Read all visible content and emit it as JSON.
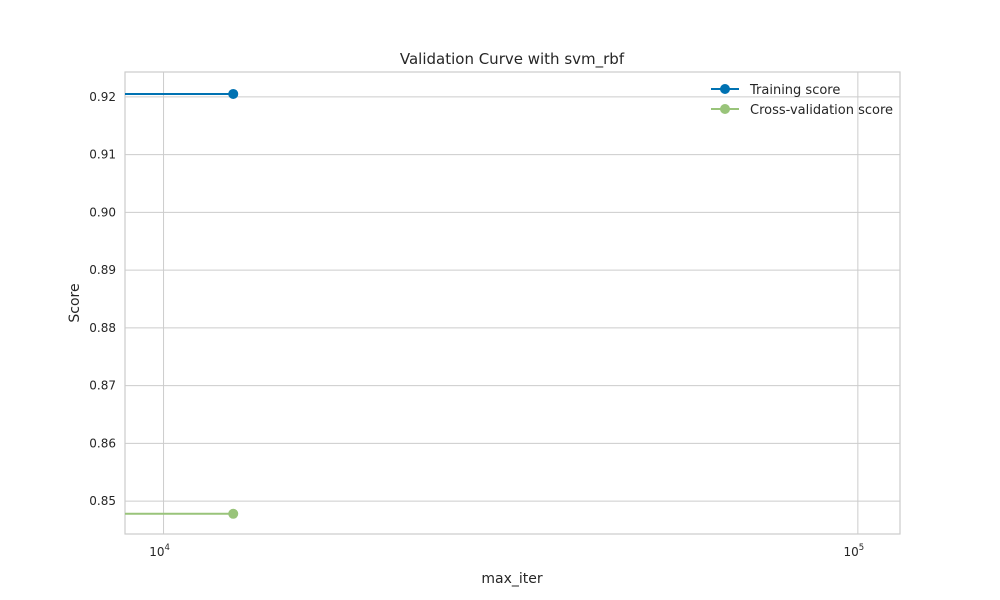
{
  "chart_data": {
    "type": "line",
    "title": "Validation Curve with svm_rbf",
    "xlabel": "max_iter",
    "ylabel": "Score",
    "x_scale": "log",
    "xlim": [
      8800,
      115000
    ],
    "ylim": [
      0.8443,
      0.9243
    ],
    "x_ticks": [
      {
        "value": 10000,
        "base": "10",
        "exp": "4"
      },
      {
        "value": 100000,
        "base": "10",
        "exp": "5"
      }
    ],
    "y_ticks": [
      {
        "value": 0.85,
        "label": "0.85"
      },
      {
        "value": 0.86,
        "label": "0.86"
      },
      {
        "value": 0.87,
        "label": "0.87"
      },
      {
        "value": 0.88,
        "label": "0.88"
      },
      {
        "value": 0.89,
        "label": "0.89"
      },
      {
        "value": 0.9,
        "label": "0.90"
      },
      {
        "value": 0.91,
        "label": "0.91"
      },
      {
        "value": 0.92,
        "label": "0.92"
      }
    ],
    "grid": true,
    "legend_position": "top-right",
    "series": [
      {
        "name": "Training score",
        "color": "#0072b2",
        "x": [
          8800,
          12600
        ],
        "y": [
          0.9205,
          0.9205
        ],
        "markers": [
          false,
          true
        ]
      },
      {
        "name": "Cross-validation score",
        "color": "#99c47a",
        "x": [
          8800,
          12600
        ],
        "y": [
          0.8478,
          0.8478
        ],
        "markers": [
          false,
          true
        ]
      }
    ]
  }
}
